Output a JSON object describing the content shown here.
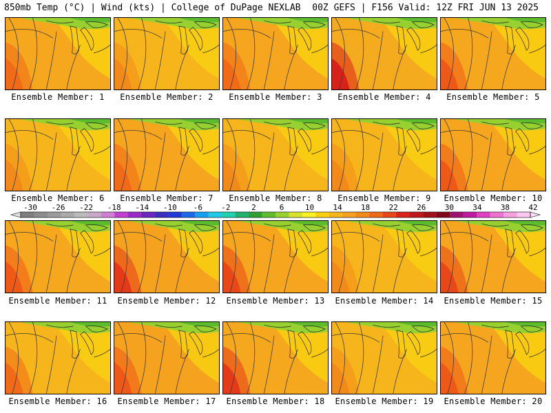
{
  "header": {
    "left": "850mb Temp (°C) | Wind (kts) | College of DuPage NEXLAB",
    "right": "00Z GEFS | F156 Valid: 12Z FRI JUN 13 2025"
  },
  "members": [
    {
      "label": "Ensemble Member: 1",
      "base": "#f5a81e",
      "hot": "#f06a18"
    },
    {
      "label": "Ensemble Member: 2",
      "base": "#f7b51c",
      "hot": "#f28a1a"
    },
    {
      "label": "Ensemble Member: 3",
      "base": "#f5a51e",
      "hot": "#f06a18"
    },
    {
      "label": "Ensemble Member: 4",
      "base": "#f5ab1e",
      "hot": "#d8221a"
    },
    {
      "label": "Ensemble Member: 5",
      "base": "#f5a81e",
      "hot": "#ee5a18"
    },
    {
      "label": "Ensemble Member: 6",
      "base": "#f7b51c",
      "hot": "#f28a1a"
    },
    {
      "label": "Ensemble Member: 7",
      "base": "#f5a51e",
      "hot": "#f06a18"
    },
    {
      "label": "Ensemble Member: 8",
      "base": "#f7b51c",
      "hot": "#f28a1a"
    },
    {
      "label": "Ensemble Member: 9",
      "base": "#f7b51c",
      "hot": "#f28a1a"
    },
    {
      "label": "Ensemble Member: 10",
      "base": "#f5a51e",
      "hot": "#ee5a18"
    },
    {
      "label": "Ensemble Member: 11",
      "base": "#f5a81e",
      "hot": "#ee5a18"
    },
    {
      "label": "Ensemble Member: 12",
      "base": "#f5a21e",
      "hot": "#e53a1a"
    },
    {
      "label": "Ensemble Member: 13",
      "base": "#f5a51e",
      "hot": "#e84818"
    },
    {
      "label": "Ensemble Member: 14",
      "base": "#f7b51c",
      "hot": "#f28a1a"
    },
    {
      "label": "Ensemble Member: 15",
      "base": "#f5a51e",
      "hot": "#e84818"
    },
    {
      "label": "Ensemble Member: 16",
      "base": "#f7b51c",
      "hot": "#f06a18"
    },
    {
      "label": "Ensemble Member: 17",
      "base": "#f5a21e",
      "hot": "#ee5a18"
    },
    {
      "label": "Ensemble Member: 18",
      "base": "#f5a81e",
      "hot": "#e53a1a"
    },
    {
      "label": "Ensemble Member: 19",
      "base": "#f7b51c",
      "hot": "#f28a1a"
    },
    {
      "label": "Ensemble Member: 20",
      "base": "#f5a51e",
      "hot": "#ee5a18"
    }
  ],
  "colorbar": {
    "ticks": [
      "-30",
      "-26",
      "-22",
      "-18",
      "-14",
      "-10",
      "-6",
      "-2",
      "2",
      "6",
      "10",
      "14",
      "18",
      "22",
      "26",
      "30",
      "34",
      "38",
      "42"
    ],
    "colors": [
      "#7e7e7e",
      "#8c8c8c",
      "#9a9a9a",
      "#aaaaaa",
      "#bbbbbb",
      "#c8a8c8",
      "#d17ed6",
      "#c03fd0",
      "#9a2bc8",
      "#6a28c0",
      "#3b2ec0",
      "#2438d8",
      "#1e68e8",
      "#18a0f0",
      "#20c8e8",
      "#20d0b0",
      "#20b070",
      "#30a030",
      "#5cbc2c",
      "#98d030",
      "#d8e030",
      "#f8f020",
      "#f8d010",
      "#f7b51c",
      "#f5a01e",
      "#f28a1a",
      "#ee6a18",
      "#e84818",
      "#d8221a",
      "#c0181a",
      "#a0101a",
      "#800818",
      "#a01070",
      "#c018a0",
      "#e040c0",
      "#f070d0",
      "#f8a0e0",
      "#fcc8f0"
    ]
  }
}
